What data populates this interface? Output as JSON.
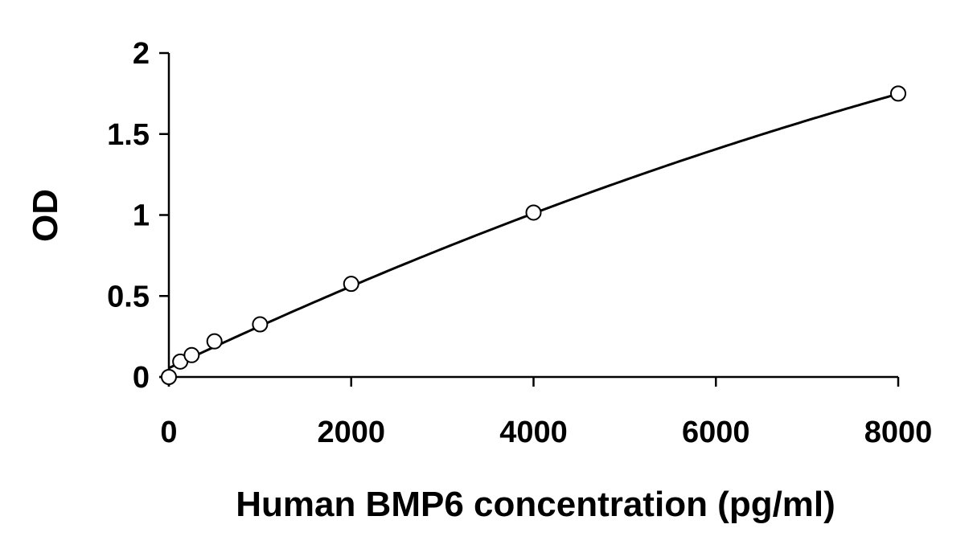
{
  "chart_data": {
    "type": "scatter",
    "title": "",
    "xlabel": "Human BMP6 concentration (pg/ml)",
    "ylabel": "OD",
    "xlim": [
      0,
      8000
    ],
    "ylim": [
      0,
      2
    ],
    "x_ticks": [
      0,
      2000,
      4000,
      6000,
      8000
    ],
    "x_tick_labels": [
      "0",
      "2000",
      "4000",
      "6000",
      "8000"
    ],
    "y_ticks": [
      0,
      0.5,
      1,
      1.5,
      2
    ],
    "y_tick_labels": [
      "0",
      "0.5",
      "1",
      "1.5",
      "2"
    ],
    "grid": false,
    "legend": "none",
    "series": [
      {
        "marker": "open-circle",
        "x": [
          0,
          125,
          250,
          500,
          1000,
          2000,
          4000,
          8000
        ],
        "y": [
          0.0,
          0.095,
          0.135,
          0.22,
          0.325,
          0.575,
          1.015,
          1.75
        ]
      }
    ],
    "fit_curve": {
      "type": "polynomial",
      "coefficients": [
        0.055,
        0.000266,
        -6.8e-09
      ],
      "x_range": [
        0,
        8000
      ],
      "color": "#000000"
    }
  }
}
